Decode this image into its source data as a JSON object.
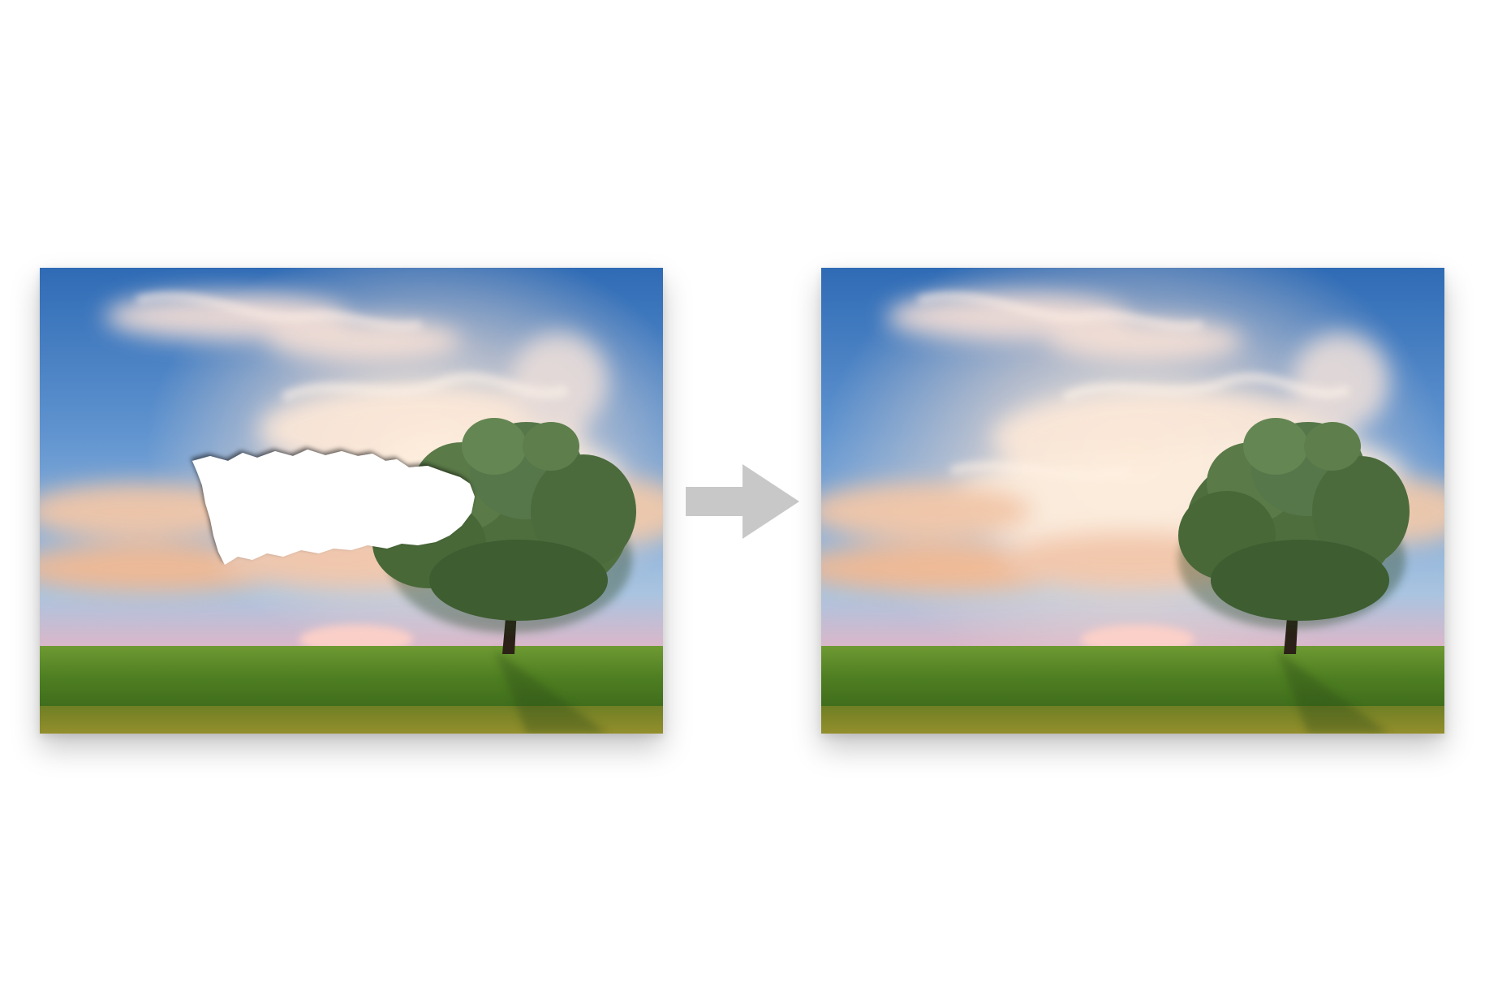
{
  "figure": {
    "kind": "before-after-comparison",
    "before": {
      "name": "damaged-photo",
      "subject": "tree-on-grass-field",
      "artifact": "torn-hole"
    },
    "after": {
      "name": "restored-photo",
      "subject": "tree-on-grass-field"
    },
    "arrow_icon": "right-arrow-icon"
  },
  "colors": {
    "sky_top": "#2f6bb5",
    "sky_mid": "#7fa9d8",
    "sky_horizon": "#e9a7b8",
    "cloud": "#fbe6d6",
    "grass_far": "#5f8f2c",
    "grass_near": "#8a9a2f",
    "tree_foliage": "#4a6b3a",
    "arrow": "#c8c8c8",
    "hole": "#ffffff"
  }
}
